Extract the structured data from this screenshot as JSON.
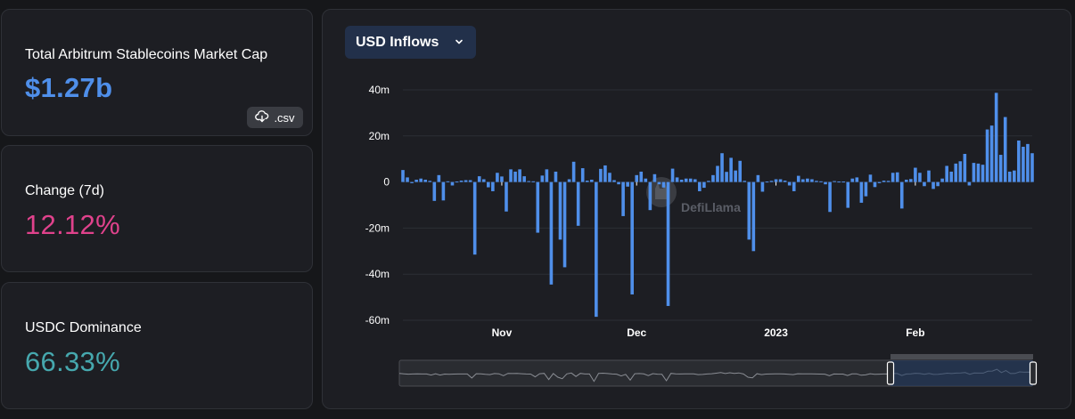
{
  "stats": {
    "market_cap": {
      "label": "Total Arbitrum Stablecoins Market Cap",
      "value": "$1.27b",
      "color": "#4f8fea"
    },
    "csv_button": {
      "label": ".csv",
      "icon": "cloud-download-icon"
    },
    "change": {
      "label": "Change (7d)",
      "value": "12.12%",
      "color": "#e0428c"
    },
    "dominance": {
      "label": "USDC Dominance",
      "value": "66.33%",
      "color": "#46a8ae"
    }
  },
  "chart_selector": {
    "selected": "USD Inflows",
    "icon": "chevron-down-icon"
  },
  "watermark": {
    "text": "DefiLlama",
    "icon": "llama-logo-icon"
  },
  "chart_data": {
    "type": "bar",
    "title": "",
    "xlabel": "",
    "ylabel": "",
    "ylim": [
      -60,
      40
    ],
    "y_ticks": [
      "40m",
      "20m",
      "0",
      "-20m",
      "-40m",
      "-60m"
    ],
    "y_tick_values": [
      40,
      20,
      0,
      -20,
      -40,
      -60
    ],
    "x_tick_labels": [
      {
        "label": "Nov",
        "date": "2022-11-01"
      },
      {
        "label": "Dec",
        "date": "2022-12-01"
      },
      {
        "label": "2023",
        "date": "2023-01-01"
      },
      {
        "label": "Feb",
        "date": "2023-02-01"
      }
    ],
    "x_range": [
      "2022-10-10",
      "2023-02-21"
    ],
    "grid": true,
    "bar_color": "#4f8fea",
    "unit": "USD millions",
    "series": [
      {
        "values": [
          {
            "date": "2022-10-10",
            "value": 5.2
          },
          {
            "date": "2022-10-11",
            "value": 2
          },
          {
            "date": "2022-10-12",
            "value": -0.5
          },
          {
            "date": "2022-10-13",
            "value": 1
          },
          {
            "date": "2022-10-14",
            "value": 1.5
          },
          {
            "date": "2022-10-15",
            "value": 1
          },
          {
            "date": "2022-10-16",
            "value": 0.5
          },
          {
            "date": "2022-10-17",
            "value": -8.2
          },
          {
            "date": "2022-10-18",
            "value": 3
          },
          {
            "date": "2022-10-19",
            "value": -8
          },
          {
            "date": "2022-10-20",
            "value": 0.3
          },
          {
            "date": "2022-10-21",
            "value": -1.5
          },
          {
            "date": "2022-10-22",
            "value": 0.2
          },
          {
            "date": "2022-10-23",
            "value": 0.6
          },
          {
            "date": "2022-10-24",
            "value": 0.8
          },
          {
            "date": "2022-10-25",
            "value": 0.8
          },
          {
            "date": "2022-10-26",
            "value": -31.5
          },
          {
            "date": "2022-10-27",
            "value": 2.5
          },
          {
            "date": "2022-10-28",
            "value": 1.2
          },
          {
            "date": "2022-10-29",
            "value": -2.3
          },
          {
            "date": "2022-10-30",
            "value": -4
          },
          {
            "date": "2022-10-31",
            "value": 4
          },
          {
            "date": "2022-11-01",
            "value": 2.4
          },
          {
            "date": "2022-11-02",
            "value": -12.8
          },
          {
            "date": "2022-11-03",
            "value": 5.5
          },
          {
            "date": "2022-11-04",
            "value": 4.5
          },
          {
            "date": "2022-11-05",
            "value": 5.5
          },
          {
            "date": "2022-11-06",
            "value": 2.5
          },
          {
            "date": "2022-11-07",
            "value": 0.4
          },
          {
            "date": "2022-11-08",
            "value": 0.3
          },
          {
            "date": "2022-11-09",
            "value": -22
          },
          {
            "date": "2022-11-10",
            "value": 2.8
          },
          {
            "date": "2022-11-11",
            "value": 5.5
          },
          {
            "date": "2022-11-12",
            "value": -44.5
          },
          {
            "date": "2022-11-13",
            "value": 4.5
          },
          {
            "date": "2022-11-14",
            "value": -25
          },
          {
            "date": "2022-11-15",
            "value": -37
          },
          {
            "date": "2022-11-16",
            "value": 1.2
          },
          {
            "date": "2022-11-17",
            "value": 8.8
          },
          {
            "date": "2022-11-18",
            "value": -19
          },
          {
            "date": "2022-11-19",
            "value": 6
          },
          {
            "date": "2022-11-20",
            "value": 0.6
          },
          {
            "date": "2022-11-21",
            "value": 1
          },
          {
            "date": "2022-11-22",
            "value": -58.5
          },
          {
            "date": "2022-11-23",
            "value": 5.7
          },
          {
            "date": "2022-11-24",
            "value": 7.2
          },
          {
            "date": "2022-11-25",
            "value": 4
          },
          {
            "date": "2022-11-26",
            "value": 0.8
          },
          {
            "date": "2022-11-27",
            "value": -1
          },
          {
            "date": "2022-11-28",
            "value": -14.8
          },
          {
            "date": "2022-11-29",
            "value": -2
          },
          {
            "date": "2022-11-30",
            "value": -48.8
          },
          {
            "date": "2022-12-01",
            "value": 3
          },
          {
            "date": "2022-12-02",
            "value": 4.5
          },
          {
            "date": "2022-12-03",
            "value": 1.5
          },
          {
            "date": "2022-12-04",
            "value": -12.2
          },
          {
            "date": "2022-12-05",
            "value": 3.4
          },
          {
            "date": "2022-12-06",
            "value": -1
          },
          {
            "date": "2022-12-07",
            "value": -2.4
          },
          {
            "date": "2022-12-08",
            "value": -53.8
          },
          {
            "date": "2022-12-09",
            "value": 5.8
          },
          {
            "date": "2022-12-10",
            "value": 2
          },
          {
            "date": "2022-12-11",
            "value": 1
          },
          {
            "date": "2022-12-12",
            "value": 1.5
          },
          {
            "date": "2022-12-13",
            "value": 1.5
          },
          {
            "date": "2022-12-14",
            "value": 1.2
          },
          {
            "date": "2022-12-15",
            "value": -4
          },
          {
            "date": "2022-12-16",
            "value": -2.5
          },
          {
            "date": "2022-12-17",
            "value": 0.5
          },
          {
            "date": "2022-12-18",
            "value": 3
          },
          {
            "date": "2022-12-19",
            "value": 7
          },
          {
            "date": "2022-12-20",
            "value": 12.5
          },
          {
            "date": "2022-12-21",
            "value": 4.4
          },
          {
            "date": "2022-12-22",
            "value": 10.5
          },
          {
            "date": "2022-12-23",
            "value": 5
          },
          {
            "date": "2022-12-24",
            "value": 9.2
          },
          {
            "date": "2022-12-25",
            "value": 0.5
          },
          {
            "date": "2022-12-26",
            "value": -25
          },
          {
            "date": "2022-12-27",
            "value": -30
          },
          {
            "date": "2022-12-28",
            "value": 3
          },
          {
            "date": "2022-12-29",
            "value": -4.2
          },
          {
            "date": "2022-12-30",
            "value": 0.2
          },
          {
            "date": "2022-12-31",
            "value": 0.5
          },
          {
            "date": "2023-01-01",
            "value": 1.2
          },
          {
            "date": "2023-01-02",
            "value": 1.2
          },
          {
            "date": "2023-01-03",
            "value": 0.6
          },
          {
            "date": "2023-01-04",
            "value": -1.5
          },
          {
            "date": "2023-01-05",
            "value": -4
          },
          {
            "date": "2023-01-06",
            "value": 2.7
          },
          {
            "date": "2023-01-07",
            "value": 1.2
          },
          {
            "date": "2023-01-08",
            "value": 1.5
          },
          {
            "date": "2023-01-09",
            "value": 1.2
          },
          {
            "date": "2023-01-10",
            "value": 0.5
          },
          {
            "date": "2023-01-11",
            "value": 0.3
          },
          {
            "date": "2023-01-12",
            "value": -1
          },
          {
            "date": "2023-01-13",
            "value": -13
          },
          {
            "date": "2023-01-14",
            "value": 0.4
          },
          {
            "date": "2023-01-15",
            "value": 0.2
          },
          {
            "date": "2023-01-16",
            "value": 0.2
          },
          {
            "date": "2023-01-17",
            "value": -11.2
          },
          {
            "date": "2023-01-18",
            "value": 1.5
          },
          {
            "date": "2023-01-19",
            "value": 2
          },
          {
            "date": "2023-01-20",
            "value": -9
          },
          {
            "date": "2023-01-21",
            "value": -6.2
          },
          {
            "date": "2023-01-22",
            "value": 3.2
          },
          {
            "date": "2023-01-23",
            "value": -2.2
          },
          {
            "date": "2023-01-24",
            "value": -0.5
          },
          {
            "date": "2023-01-25",
            "value": 0.6
          },
          {
            "date": "2023-01-26",
            "value": 0.5
          },
          {
            "date": "2023-01-27",
            "value": 4
          },
          {
            "date": "2023-01-28",
            "value": 4.2
          },
          {
            "date": "2023-01-29",
            "value": -11.5
          },
          {
            "date": "2023-01-30",
            "value": 1
          },
          {
            "date": "2023-01-31",
            "value": 1.3
          },
          {
            "date": "2023-02-01",
            "value": 6.2
          },
          {
            "date": "2023-02-02",
            "value": 4
          },
          {
            "date": "2023-02-03",
            "value": -1.8
          },
          {
            "date": "2023-02-04",
            "value": 5
          },
          {
            "date": "2023-02-05",
            "value": -3
          },
          {
            "date": "2023-02-06",
            "value": -1.8
          },
          {
            "date": "2023-02-07",
            "value": 1.5
          },
          {
            "date": "2023-02-08",
            "value": 7
          },
          {
            "date": "2023-02-09",
            "value": 4.5
          },
          {
            "date": "2023-02-10",
            "value": 8
          },
          {
            "date": "2023-02-11",
            "value": 9
          },
          {
            "date": "2023-02-12",
            "value": 12.2
          },
          {
            "date": "2023-02-13",
            "value": -1.5
          },
          {
            "date": "2023-02-14",
            "value": 8.3
          },
          {
            "date": "2023-02-15",
            "value": 8
          },
          {
            "date": "2023-02-16",
            "value": 7.5
          },
          {
            "date": "2023-02-17",
            "value": 22.8
          },
          {
            "date": "2023-02-18",
            "value": 24.5
          },
          {
            "date": "2023-02-19",
            "value": 38.7
          },
          {
            "date": "2023-02-20",
            "value": 11.8
          },
          {
            "date": "2023-02-21",
            "value": 28.2
          },
          {
            "date": "2023-02-22",
            "value": 4.5
          },
          {
            "date": "2023-02-23",
            "value": 5
          },
          {
            "date": "2023-02-24",
            "value": 18
          },
          {
            "date": "2023-02-25",
            "value": 15.3
          },
          {
            "date": "2023-02-26",
            "value": 16.5
          },
          {
            "date": "2023-02-27",
            "value": 12.5
          }
        ]
      }
    ]
  },
  "brush": {
    "selection_start": 0.775,
    "selection_end": 1.0
  }
}
